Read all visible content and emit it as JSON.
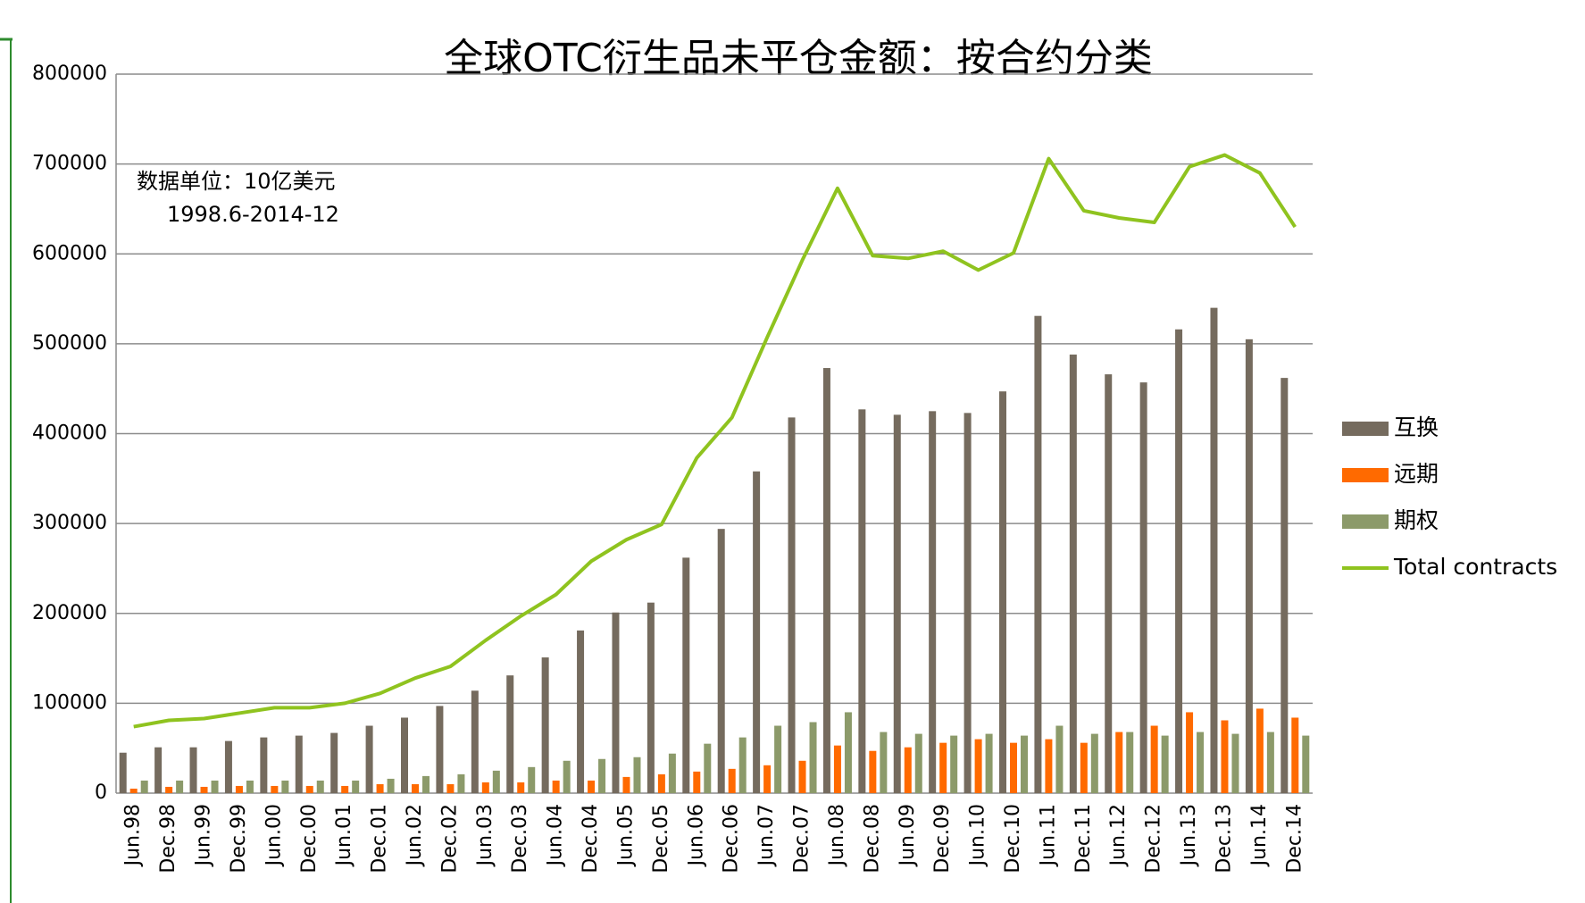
{
  "chart_data": {
    "type": "bar",
    "title": "全球OTC衍生品未平仓金额：按合约分类",
    "annotations": [
      "数据单位：10亿美元",
      "1998.6-2014-12"
    ],
    "categories": [
      "Jun.98",
      "Dec.98",
      "Jun.99",
      "Dec.99",
      "Jun.00",
      "Dec.00",
      "Jun.01",
      "Dec.01",
      "Jun.02",
      "Dec.02",
      "Jun.03",
      "Dec.03",
      "Jun.04",
      "Dec.04",
      "Jun.05",
      "Dec.05",
      "Jun.06",
      "Dec.06",
      "Jun.07",
      "Dec.07",
      "Jun.08",
      "Dec.08",
      "Jun.09",
      "Dec.09",
      "Jun.10",
      "Dec.10",
      "Jun.11",
      "Dec.11",
      "Jun.12",
      "Dec.12",
      "Jun.13",
      "Dec.13",
      "Jun.14",
      "Dec.14"
    ],
    "series": [
      {
        "name": "互换",
        "color": "#756b5e",
        "values": [
          45000,
          51000,
          51000,
          58000,
          62000,
          64000,
          67000,
          75000,
          84000,
          97000,
          114000,
          131000,
          151000,
          181000,
          201000,
          212000,
          262000,
          294000,
          358000,
          418000,
          473000,
          427000,
          421000,
          425000,
          423000,
          447000,
          531000,
          488000,
          466000,
          457000,
          516000,
          540000,
          505000,
          462000
        ]
      },
      {
        "name": "远期",
        "color": "#ff6a00",
        "values": [
          5000,
          7000,
          7000,
          8000,
          8000,
          8000,
          8000,
          10000,
          10000,
          10000,
          12000,
          12000,
          14000,
          14000,
          18000,
          21000,
          24000,
          27000,
          31000,
          36000,
          53000,
          47000,
          51000,
          56000,
          60000,
          56000,
          60000,
          56000,
          68000,
          75000,
          90000,
          81000,
          94000,
          84000
        ]
      },
      {
        "name": "期权",
        "color": "#8c9a6a",
        "values": [
          14000,
          14000,
          14000,
          14000,
          14000,
          14000,
          14000,
          16000,
          19000,
          21000,
          25000,
          29000,
          36000,
          38000,
          40000,
          44000,
          55000,
          62000,
          75000,
          79000,
          90000,
          68000,
          66000,
          64000,
          66000,
          64000,
          75000,
          66000,
          68000,
          64000,
          68000,
          66000,
          68000,
          64000
        ]
      },
      {
        "name": "Total contracts",
        "color": "#8fc31f",
        "type": "line",
        "values": [
          74000,
          81000,
          83000,
          89000,
          95000,
          95000,
          100000,
          111000,
          128000,
          141000,
          170000,
          197000,
          221000,
          258000,
          282000,
          299000,
          373000,
          418000,
          507000,
          593000,
          673000,
          598000,
          595000,
          603000,
          582000,
          601000,
          706000,
          648000,
          640000,
          635000,
          697000,
          710000,
          690000,
          630000
        ]
      }
    ],
    "ylim": [
      0,
      800000
    ],
    "yticks": [
      0,
      100000,
      200000,
      300000,
      400000,
      500000,
      600000,
      700000,
      800000
    ],
    "grid": true,
    "legend": "right"
  }
}
